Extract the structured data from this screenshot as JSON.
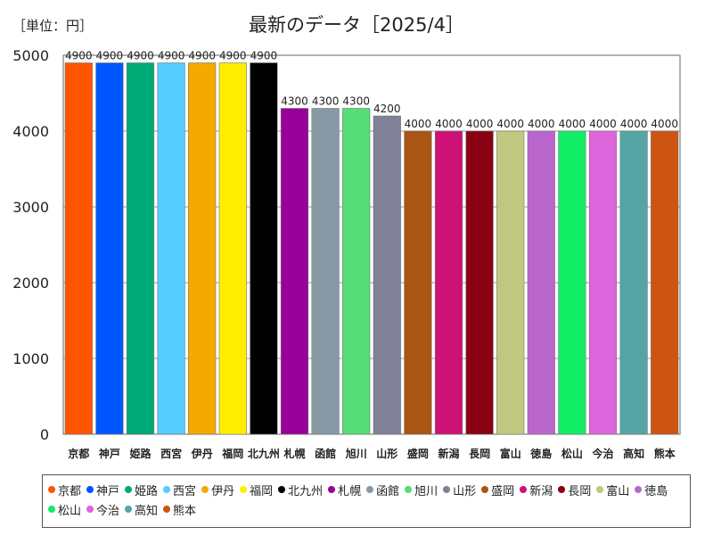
{
  "chart_data": {
    "type": "bar",
    "title": "最新のデータ［2025/4］",
    "unit_label": "［単位：円］",
    "categories": [
      "京都",
      "神戸",
      "姫路",
      "西宮",
      "伊丹",
      "福岡",
      "北九州",
      "札幌",
      "函館",
      "旭川",
      "山形",
      "盛岡",
      "新潟",
      "長岡",
      "富山",
      "徳島",
      "松山",
      "今治",
      "高知",
      "熊本"
    ],
    "values": [
      4900,
      4900,
      4900,
      4900,
      4900,
      4900,
      4900,
      4300,
      4300,
      4300,
      4200,
      4000,
      4000,
      4000,
      4000,
      4000,
      4000,
      4000,
      4000,
      4000
    ],
    "colors": [
      "#ff5500",
      "#0055ff",
      "#00aa77",
      "#55ccff",
      "#f5a800",
      "#ffee00",
      "#000000",
      "#990099",
      "#8899a6",
      "#55dd77",
      "#808099",
      "#aa5511",
      "#cc1177",
      "#880011",
      "#c0c880",
      "#bb66cc",
      "#11ee66",
      "#dd66dd",
      "#55a5a5",
      "#cc5511"
    ],
    "ylim": [
      0,
      5000
    ],
    "yticks": [
      0,
      1000,
      2000,
      3000,
      4000,
      5000
    ],
    "grid": true,
    "legend": "bottom"
  }
}
